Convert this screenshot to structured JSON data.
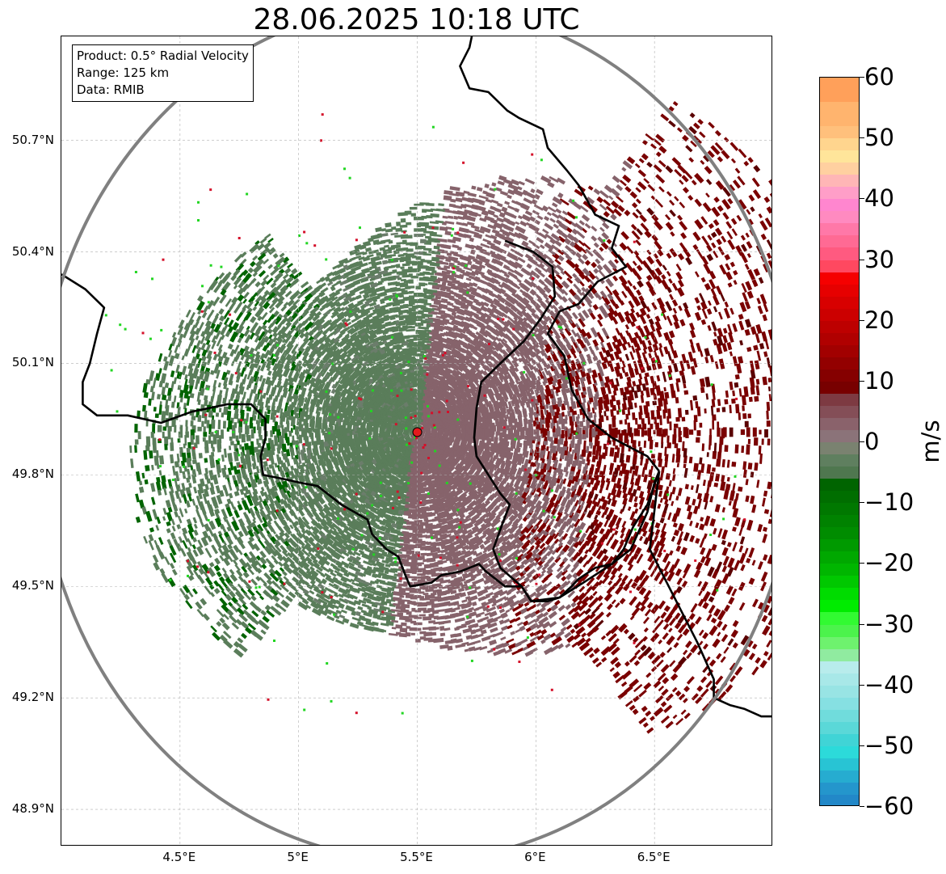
{
  "title": "28.06.2025 10:18 UTC",
  "info": {
    "product": "Product: 0.5° Radial Velocity",
    "range": "Range: 125 km",
    "data": "Data: RMIB"
  },
  "map": {
    "lon_range": [
      4.0,
      7.0
    ],
    "lat_range": [
      48.8,
      50.98
    ],
    "radar_site": {
      "lon": 5.5,
      "lat": 49.915
    },
    "lat_ticks": [
      {
        "value": 48.9,
        "label": "48.9°N"
      },
      {
        "value": 49.2,
        "label": "49.2°N"
      },
      {
        "value": 49.5,
        "label": "49.5°N"
      },
      {
        "value": 49.8,
        "label": "49.8°N"
      },
      {
        "value": 50.1,
        "label": "50.1°N"
      },
      {
        "value": 50.4,
        "label": "50.4°N"
      },
      {
        "value": 50.7,
        "label": "50.7°N"
      }
    ],
    "lon_ticks": [
      {
        "value": 4.5,
        "label": "4.5°E"
      },
      {
        "value": 5.0,
        "label": "5°E"
      },
      {
        "value": 5.5,
        "label": "5.5°E"
      },
      {
        "value": 6.0,
        "label": "6°E"
      },
      {
        "value": 6.5,
        "label": "6.5°E"
      }
    ],
    "gridlines": true,
    "colors": {
      "range_ring": "#808080",
      "border": "#000000",
      "inner_border": "#8a8a8a",
      "radar_marker": "#e31a1c",
      "inbound_strong": "#006400",
      "inbound_weak": "#5a7d5a",
      "outbound_weak": "#86636b",
      "outbound_strong": "#7a0000"
    },
    "borders": [
      [
        [
          4.0,
          50.34
        ],
        [
          4.1,
          50.3
        ],
        [
          4.18,
          50.25
        ],
        [
          4.15,
          50.18
        ],
        [
          4.12,
          50.1
        ],
        [
          4.09,
          50.05
        ],
        [
          4.09,
          49.99
        ],
        [
          4.15,
          49.96
        ],
        [
          4.28,
          49.96
        ],
        [
          4.42,
          49.94
        ],
        [
          4.55,
          49.97
        ],
        [
          4.7,
          49.99
        ],
        [
          4.8,
          49.99
        ],
        [
          4.86,
          49.95
        ],
        [
          4.86,
          49.9
        ],
        [
          4.84,
          49.85
        ],
        [
          4.85,
          49.8
        ],
        [
          4.93,
          49.79
        ],
        [
          5.0,
          49.78
        ],
        [
          5.08,
          49.77
        ],
        [
          5.18,
          49.72
        ],
        [
          5.29,
          49.68
        ],
        [
          5.31,
          49.64
        ],
        [
          5.37,
          49.6
        ],
        [
          5.42,
          49.58
        ],
        [
          5.45,
          49.53
        ],
        [
          5.47,
          49.5
        ],
        [
          5.56,
          49.51
        ],
        [
          5.6,
          49.53
        ],
        [
          5.68,
          49.54
        ],
        [
          5.76,
          49.56
        ],
        [
          5.79,
          49.54
        ],
        [
          5.87,
          49.5
        ],
        [
          5.94,
          49.5
        ],
        [
          5.98,
          49.46
        ],
        [
          6.1,
          49.47
        ],
        [
          6.2,
          49.51
        ],
        [
          6.32,
          49.56
        ],
        [
          6.37,
          49.6
        ],
        [
          6.41,
          49.66
        ],
        [
          6.47,
          49.72
        ],
        [
          6.52,
          49.81
        ]
      ],
      [
        [
          6.52,
          49.81
        ],
        [
          6.47,
          49.85
        ],
        [
          6.32,
          49.9
        ],
        [
          6.22,
          49.95
        ],
        [
          6.15,
          50.03
        ],
        [
          6.12,
          50.12
        ],
        [
          6.05,
          50.18
        ],
        [
          6.1,
          50.24
        ],
        [
          6.18,
          50.26
        ],
        [
          6.26,
          50.32
        ],
        [
          6.38,
          50.36
        ],
        [
          6.32,
          50.41
        ],
        [
          6.35,
          50.47
        ],
        [
          6.25,
          50.5
        ],
        [
          6.18,
          50.58
        ],
        [
          6.13,
          50.62
        ],
        [
          6.05,
          50.68
        ],
        [
          6.03,
          50.73
        ],
        [
          5.93,
          50.76
        ],
        [
          5.88,
          50.78
        ],
        [
          5.8,
          50.83
        ],
        [
          5.72,
          50.84
        ],
        [
          5.68,
          50.9
        ],
        [
          5.72,
          50.95
        ],
        [
          5.73,
          50.98
        ]
      ],
      [
        [
          5.87,
          50.43
        ],
        [
          5.99,
          50.4
        ],
        [
          6.07,
          50.36
        ],
        [
          6.08,
          50.28
        ],
        [
          6.02,
          50.22
        ],
        [
          5.95,
          50.16
        ],
        [
          5.85,
          50.1
        ],
        [
          5.77,
          50.05
        ],
        [
          5.75,
          49.98
        ],
        [
          5.74,
          49.9
        ],
        [
          5.75,
          49.85
        ],
        [
          5.8,
          49.8
        ],
        [
          5.85,
          49.75
        ],
        [
          5.89,
          49.72
        ],
        [
          5.86,
          49.67
        ],
        [
          5.82,
          49.6
        ],
        [
          5.85,
          49.55
        ],
        [
          5.94,
          49.5
        ],
        [
          5.98,
          49.46
        ],
        [
          6.05,
          49.46
        ],
        [
          6.1,
          49.47
        ],
        [
          6.15,
          49.5
        ],
        [
          6.18,
          49.52
        ],
        [
          6.25,
          49.55
        ],
        [
          6.32,
          49.56
        ],
        [
          6.4,
          49.6
        ],
        [
          6.47,
          49.7
        ],
        [
          6.5,
          49.78
        ],
        [
          6.52,
          49.81
        ]
      ],
      [
        [
          6.75,
          49.2
        ],
        [
          6.82,
          49.18
        ],
        [
          6.88,
          49.17
        ],
        [
          6.95,
          49.15
        ],
        [
          7.0,
          49.15
        ]
      ],
      [
        [
          6.52,
          49.81
        ],
        [
          6.48,
          49.6
        ],
        [
          6.6,
          49.45
        ],
        [
          6.68,
          49.35
        ],
        [
          6.75,
          49.25
        ],
        [
          6.75,
          49.2
        ]
      ]
    ]
  },
  "colorbar": {
    "label": "m/s",
    "min": -60,
    "max": 60,
    "ticks": [
      {
        "value": 60,
        "label": "60"
      },
      {
        "value": 50,
        "label": "50"
      },
      {
        "value": 40,
        "label": "40"
      },
      {
        "value": 30,
        "label": "30"
      },
      {
        "value": 20,
        "label": "20"
      },
      {
        "value": 10,
        "label": "10"
      },
      {
        "value": 0,
        "label": "0"
      },
      {
        "value": -10,
        "label": "−10"
      },
      {
        "value": -20,
        "label": "−20"
      },
      {
        "value": -30,
        "label": "−30"
      },
      {
        "value": -40,
        "label": "−40"
      },
      {
        "value": -50,
        "label": "−50"
      },
      {
        "value": -60,
        "label": "−60"
      }
    ],
    "bands": [
      {
        "from": 56,
        "to": 60,
        "color": "#ffa05a"
      },
      {
        "from": 52,
        "to": 56,
        "color": "#ffb46e"
      },
      {
        "from": 50,
        "to": 52,
        "color": "#ffc07c"
      },
      {
        "from": 48,
        "to": 50,
        "color": "#ffd58e"
      },
      {
        "from": 46,
        "to": 48,
        "color": "#ffe59a"
      },
      {
        "from": 44,
        "to": 46,
        "color": "#ffd0a0"
      },
      {
        "from": 42,
        "to": 44,
        "color": "#ffb6b6"
      },
      {
        "from": 40,
        "to": 42,
        "color": "#ff9ec8"
      },
      {
        "from": 38,
        "to": 40,
        "color": "#ff86cf"
      },
      {
        "from": 36,
        "to": 38,
        "color": "#ff8ac0"
      },
      {
        "from": 34,
        "to": 36,
        "color": "#ff78a8"
      },
      {
        "from": 32,
        "to": 34,
        "color": "#ff6a94"
      },
      {
        "from": 30,
        "to": 32,
        "color": "#ff5a80"
      },
      {
        "from": 28,
        "to": 30,
        "color": "#ff4860"
      },
      {
        "from": 26,
        "to": 28,
        "color": "#f50000"
      },
      {
        "from": 24,
        "to": 26,
        "color": "#e60000"
      },
      {
        "from": 22,
        "to": 24,
        "color": "#d80000"
      },
      {
        "from": 20,
        "to": 22,
        "color": "#cc0000"
      },
      {
        "from": 18,
        "to": 20,
        "color": "#bd0000"
      },
      {
        "from": 16,
        "to": 18,
        "color": "#b00000"
      },
      {
        "from": 14,
        "to": 16,
        "color": "#a20000"
      },
      {
        "from": 12,
        "to": 14,
        "color": "#930000"
      },
      {
        "from": 10,
        "to": 12,
        "color": "#850000"
      },
      {
        "from": 8,
        "to": 10,
        "color": "#780000"
      },
      {
        "from": 6,
        "to": 8,
        "color": "#7d3a42"
      },
      {
        "from": 4,
        "to": 6,
        "color": "#844e57"
      },
      {
        "from": 2,
        "to": 4,
        "color": "#8a626b"
      },
      {
        "from": 0,
        "to": 2,
        "color": "#8b7379"
      },
      {
        "from": -2,
        "to": 0,
        "color": "#7a8270"
      },
      {
        "from": -4,
        "to": -2,
        "color": "#5f7f5f"
      },
      {
        "from": -6,
        "to": -4,
        "color": "#4f774f"
      },
      {
        "from": -8,
        "to": -6,
        "color": "#006400"
      },
      {
        "from": -10,
        "to": -8,
        "color": "#006e00"
      },
      {
        "from": -12,
        "to": -10,
        "color": "#007800"
      },
      {
        "from": -14,
        "to": -12,
        "color": "#008200"
      },
      {
        "from": -16,
        "to": -14,
        "color": "#008c00"
      },
      {
        "from": -18,
        "to": -16,
        "color": "#009a00"
      },
      {
        "from": -20,
        "to": -18,
        "color": "#00a800"
      },
      {
        "from": -22,
        "to": -20,
        "color": "#00b600"
      },
      {
        "from": -24,
        "to": -22,
        "color": "#00c800"
      },
      {
        "from": -26,
        "to": -24,
        "color": "#00dc00"
      },
      {
        "from": -28,
        "to": -26,
        "color": "#00ec00"
      },
      {
        "from": -30,
        "to": -28,
        "color": "#32fa32"
      },
      {
        "from": -32,
        "to": -30,
        "color": "#4cf34c"
      },
      {
        "from": -34,
        "to": -32,
        "color": "#6ef26e"
      },
      {
        "from": -36,
        "to": -34,
        "color": "#90eba0"
      },
      {
        "from": -38,
        "to": -36,
        "color": "#b8ecec"
      },
      {
        "from": -40,
        "to": -38,
        "color": "#a8e8e8"
      },
      {
        "from": -42,
        "to": -40,
        "color": "#98e4e4"
      },
      {
        "from": -44,
        "to": -42,
        "color": "#86e0e2"
      },
      {
        "from": -46,
        "to": -44,
        "color": "#70dcdc"
      },
      {
        "from": -48,
        "to": -46,
        "color": "#5ad8d8"
      },
      {
        "from": -50,
        "to": -48,
        "color": "#40d4d6"
      },
      {
        "from": -52,
        "to": -50,
        "color": "#2cdada"
      },
      {
        "from": -54,
        "to": -52,
        "color": "#28c4d4"
      },
      {
        "from": -56,
        "to": -54,
        "color": "#26acd0"
      },
      {
        "from": -58,
        "to": -56,
        "color": "#2496cc"
      },
      {
        "from": -60,
        "to": -58,
        "color": "#2288c8"
      }
    ]
  }
}
